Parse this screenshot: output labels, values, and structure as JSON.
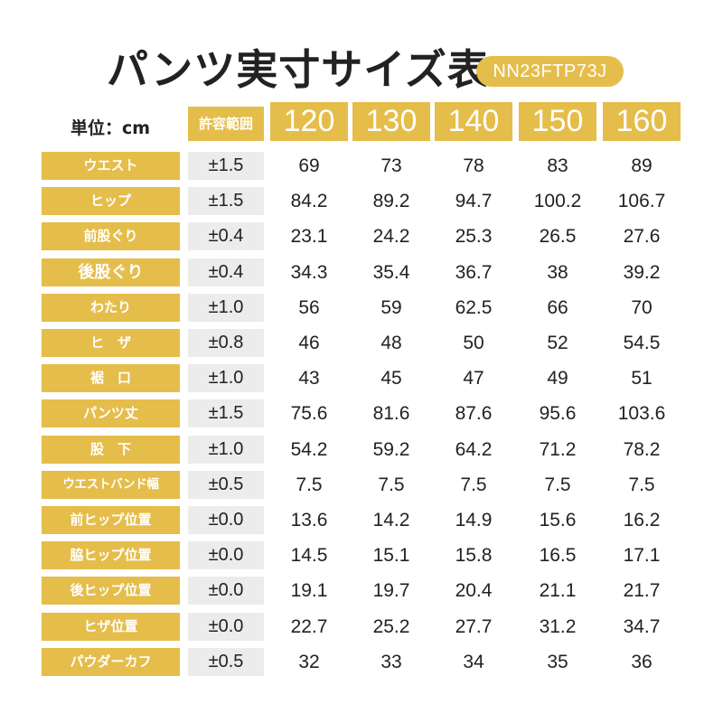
{
  "title": "パンツ実寸サイズ表",
  "product_code": "NN23FTP73J",
  "unit_label": "単位：cm",
  "tolerance_header": "許容範囲",
  "sizes": [
    "120",
    "130",
    "140",
    "150",
    "160"
  ],
  "rows": [
    {
      "label": "ウエスト",
      "tolerance": "±1.5",
      "values": [
        "69",
        "73",
        "78",
        "83",
        "89"
      ]
    },
    {
      "label": "ヒップ",
      "tolerance": "±1.5",
      "values": [
        "84.2",
        "89.2",
        "94.7",
        "100.2",
        "106.7"
      ]
    },
    {
      "label": "前股ぐり",
      "tolerance": "±0.4",
      "values": [
        "23.1",
        "24.2",
        "25.3",
        "26.5",
        "27.6"
      ]
    },
    {
      "label": "後股ぐり",
      "tolerance": "±0.4",
      "values": [
        "34.3",
        "35.4",
        "36.7",
        "38",
        "39.2"
      ]
    },
    {
      "label": "わたり",
      "tolerance": "±1.0",
      "values": [
        "56",
        "59",
        "62.5",
        "66",
        "70"
      ]
    },
    {
      "label": "ヒ　ザ",
      "tolerance": "±0.8",
      "values": [
        "46",
        "48",
        "50",
        "52",
        "54.5"
      ]
    },
    {
      "label": "裾　口",
      "tolerance": "±1.0",
      "values": [
        "43",
        "45",
        "47",
        "49",
        "51"
      ]
    },
    {
      "label": "パンツ丈",
      "tolerance": "±1.5",
      "values": [
        "75.6",
        "81.6",
        "87.6",
        "95.6",
        "103.6"
      ]
    },
    {
      "label": "股　下",
      "tolerance": "±1.0",
      "values": [
        "54.2",
        "59.2",
        "64.2",
        "71.2",
        "78.2"
      ]
    },
    {
      "label": "ウエストバンド幅",
      "tolerance": "±0.5",
      "values": [
        "7.5",
        "7.5",
        "7.5",
        "7.5",
        "7.5"
      ]
    },
    {
      "label": "前ヒップ位置",
      "tolerance": "±0.0",
      "values": [
        "13.6",
        "14.2",
        "14.9",
        "15.6",
        "16.2"
      ]
    },
    {
      "label": "脇ヒップ位置",
      "tolerance": "±0.0",
      "values": [
        "14.5",
        "15.1",
        "15.8",
        "16.5",
        "17.1"
      ]
    },
    {
      "label": "後ヒップ位置",
      "tolerance": "±0.0",
      "values": [
        "19.1",
        "19.7",
        "20.4",
        "21.1",
        "21.7"
      ]
    },
    {
      "label": "ヒザ位置",
      "tolerance": "±0.0",
      "values": [
        "22.7",
        "25.2",
        "27.7",
        "31.2",
        "34.7"
      ]
    },
    {
      "label": "パウダーカフ",
      "tolerance": "±0.5",
      "values": [
        "32",
        "33",
        "34",
        "35",
        "36"
      ]
    }
  ],
  "colors": {
    "accent": "#e5bd4b",
    "tolerance_bg": "#ececec",
    "text": "#222222"
  }
}
